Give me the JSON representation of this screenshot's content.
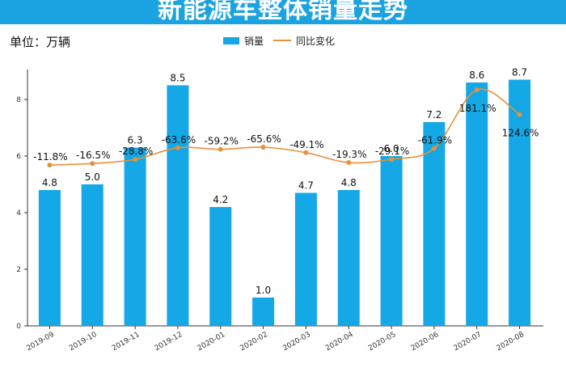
{
  "header": {
    "title": "新能源车整体销量走势"
  },
  "unit_label": "单位：万辆",
  "colors": {
    "bar": "#14a8e6",
    "line": "#e8903a",
    "title_bg": "#1aa3e0",
    "axis": "#333333"
  },
  "chart_data": {
    "type": "bar",
    "categories": [
      "2019-09",
      "2019-10",
      "2019-11",
      "2019-12",
      "2020-01",
      "2020-02",
      "2020-03",
      "2020-04",
      "2020-05",
      "2020-06",
      "2020-07",
      "2020-08"
    ],
    "series": [
      {
        "name": "销量",
        "type": "bar",
        "values": [
          4.8,
          5.0,
          6.3,
          8.5,
          4.2,
          1.0,
          4.7,
          4.8,
          6.0,
          7.2,
          8.6,
          8.7
        ],
        "labels": [
          "4.8",
          "5.0",
          "6.3",
          "8.5",
          "4.2",
          "1.0",
          "4.7",
          "4.8",
          "6.0",
          "7.2",
          "8.6",
          "8.7"
        ]
      },
      {
        "name": "同比变化",
        "type": "line",
        "values": [
          -11.8,
          -16.5,
          -28.8,
          -63.6,
          -59.2,
          -65.6,
          -49.1,
          -19.3,
          -29.1,
          -61.9,
          181.1,
          124.6
        ],
        "labels": [
          "-11.8%",
          "-16.5%",
          "-28.8%",
          "-63.6%",
          "-59.2%",
          "-65.6%",
          "-49.1%",
          "-19.3%",
          "-29.1%",
          "-61.9%",
          "181.1%",
          "124.6%"
        ]
      }
    ],
    "y_ticks": [
      "0",
      "2",
      "4",
      "6",
      "8"
    ],
    "ylim": [
      0,
      9
    ],
    "legend": "top-center",
    "grid": false
  }
}
